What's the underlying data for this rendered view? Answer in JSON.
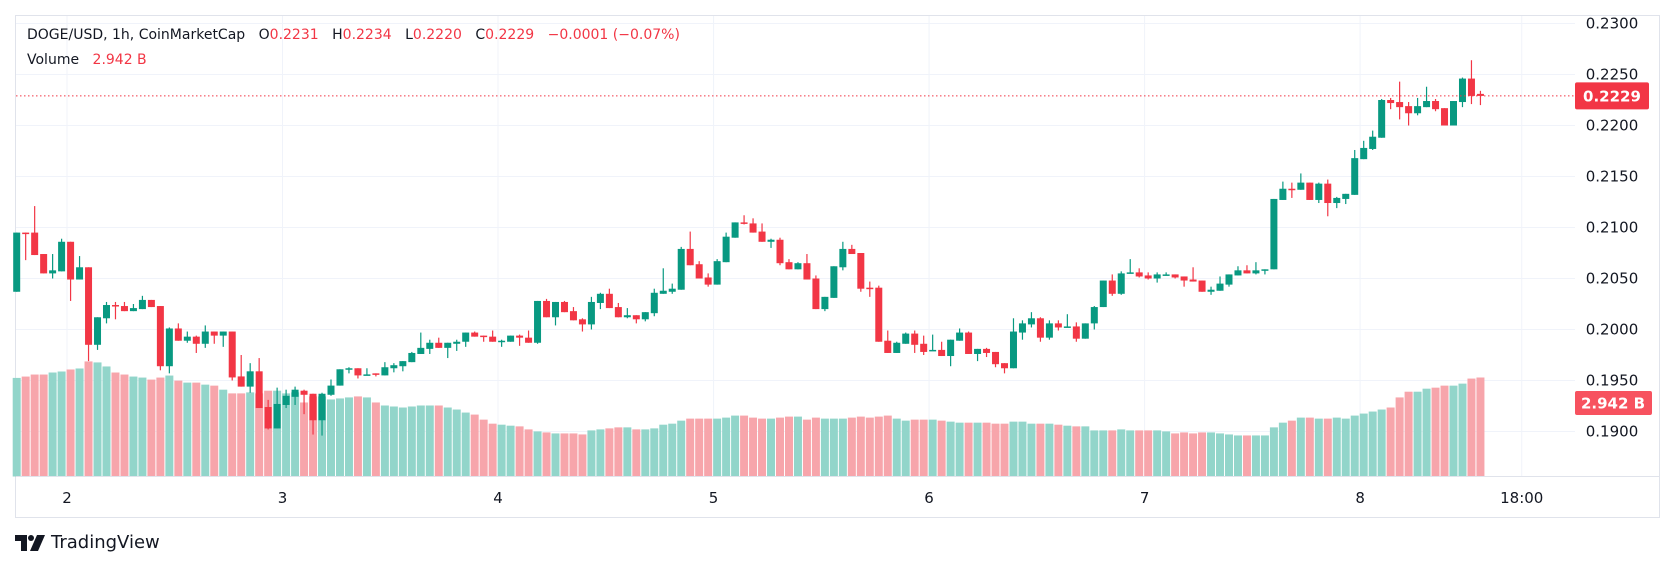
{
  "legend": {
    "symbol": "DOGE/USD, 1h, CoinMarketCap",
    "o_label": "O",
    "o_value": "0.2231",
    "h_label": "H",
    "h_value": "0.2234",
    "l_label": "L",
    "l_value": "0.2220",
    "c_label": "C",
    "c_value": "0.2229",
    "change": "−0.0001 (−0.07%)",
    "volume_label": "Volume",
    "volume_value": "2.942 B"
  },
  "branding": {
    "name": "TradingView"
  },
  "colors": {
    "up": "#089981",
    "down": "#f23645",
    "up_vol": "#92d5ca",
    "down_vol": "#f7a5ab",
    "grid": "#f0f3fa",
    "vol_tag": "#f7525f"
  },
  "chart_data": {
    "type": "candlestick",
    "title": "DOGE/USD, 1h, CoinMarketCap",
    "ylim": [
      0.185,
      0.23
    ],
    "y_ticks": [
      "0.2300",
      "0.2250",
      "0.2200",
      "0.2150",
      "0.2100",
      "0.2050",
      "0.2000",
      "0.1950",
      "0.1900"
    ],
    "x_ticks": [
      {
        "label": "2",
        "at": 5.6
      },
      {
        "label": "3",
        "at": 29.6
      },
      {
        "label": "4",
        "at": 53.6
      },
      {
        "label": "5",
        "at": 77.6
      },
      {
        "label": "6",
        "at": 101.6
      },
      {
        "label": "7",
        "at": 125.6
      },
      {
        "label": "8",
        "at": 149.6
      },
      {
        "label": "18:00",
        "at": 167.6
      }
    ],
    "last_price": {
      "value": 0.2229,
      "label": "0.2229"
    },
    "last_volume": {
      "value": 2.942,
      "label": "2.942 B"
    },
    "volume_unit": "B",
    "candle_fields": [
      "open",
      "high",
      "low",
      "close",
      "volume"
    ],
    "candles": [
      [
        0.2037,
        0.2095,
        0.2037,
        0.2095,
        2.93
      ],
      [
        0.2095,
        0.2095,
        0.2068,
        0.2094,
        2.97
      ],
      [
        0.2095,
        0.2121,
        0.2073,
        0.2073,
        3.03
      ],
      [
        0.2074,
        0.2074,
        0.2055,
        0.2055,
        3.03
      ],
      [
        0.2055,
        0.2074,
        0.205,
        0.2058,
        3.09
      ],
      [
        0.2057,
        0.2089,
        0.2057,
        0.2086,
        3.12
      ],
      [
        0.2086,
        0.2086,
        0.2028,
        0.2049,
        3.18
      ],
      [
        0.2049,
        0.2072,
        0.2049,
        0.2061,
        3.21
      ],
      [
        0.2061,
        0.2061,
        0.1969,
        0.1985,
        3.42
      ],
      [
        0.1985,
        0.2012,
        0.198,
        0.2012,
        3.39
      ],
      [
        0.2011,
        0.2027,
        0.2006,
        0.2024,
        3.27
      ],
      [
        0.2024,
        0.2027,
        0.201,
        0.2023,
        3.09
      ],
      [
        0.2023,
        0.2027,
        0.2018,
        0.2018,
        3.03
      ],
      [
        0.2018,
        0.2025,
        0.2018,
        0.2021,
        2.97
      ],
      [
        0.202,
        0.2033,
        0.202,
        0.2029,
        2.94
      ],
      [
        0.2029,
        0.2029,
        0.2022,
        0.2022,
        2.88
      ],
      [
        0.2023,
        0.2023,
        0.196,
        0.1964,
        2.94
      ],
      [
        0.1964,
        0.2002,
        0.1957,
        0.2001,
        3.0
      ],
      [
        0.2001,
        0.2006,
        0.1989,
        0.1989,
        2.85
      ],
      [
        0.1989,
        0.1998,
        0.1987,
        0.1993,
        2.79
      ],
      [
        0.1993,
        0.1994,
        0.1977,
        0.1986,
        2.79
      ],
      [
        0.1986,
        0.2004,
        0.1982,
        0.1998,
        2.73
      ],
      [
        0.1998,
        0.1998,
        0.1986,
        0.1994,
        2.7
      ],
      [
        0.1994,
        0.1998,
        0.1983,
        0.1998,
        2.58
      ],
      [
        0.1998,
        0.1998,
        0.195,
        0.1953,
        2.47
      ],
      [
        0.1954,
        0.1975,
        0.1944,
        0.1944,
        2.47
      ],
      [
        0.1944,
        0.1967,
        0.1938,
        0.1959,
        2.5
      ],
      [
        0.1959,
        0.1972,
        0.1923,
        0.1923,
        2.47
      ],
      [
        0.1924,
        0.1931,
        0.1902,
        0.1903,
        2.55
      ],
      [
        0.1903,
        0.1943,
        0.1903,
        0.1927,
        2.55
      ],
      [
        0.1926,
        0.1941,
        0.1923,
        0.1935,
        2.47
      ],
      [
        0.1934,
        0.1944,
        0.1926,
        0.1941,
        2.5
      ],
      [
        0.194,
        0.1941,
        0.1917,
        0.1936,
        2.2
      ],
      [
        0.1937,
        0.1937,
        0.1897,
        0.1911,
        2.38
      ],
      [
        0.1911,
        0.1938,
        0.1896,
        0.1937,
        2.38
      ],
      [
        0.1936,
        0.1951,
        0.1935,
        0.1945,
        2.29
      ],
      [
        0.1945,
        0.1961,
        0.1945,
        0.1961,
        2.32
      ],
      [
        0.1962,
        0.1963,
        0.1957,
        0.1962,
        2.35
      ],
      [
        0.1962,
        0.1962,
        0.1952,
        0.1955,
        2.38
      ],
      [
        0.1955,
        0.1962,
        0.1955,
        0.1956,
        2.35
      ],
      [
        0.1957,
        0.1957,
        0.1954,
        0.1956,
        2.2
      ],
      [
        0.1955,
        0.1968,
        0.1955,
        0.1963,
        2.11
      ],
      [
        0.1962,
        0.1967,
        0.1958,
        0.1965,
        2.08
      ],
      [
        0.1964,
        0.1969,
        0.1959,
        0.1969,
        2.05
      ],
      [
        0.1968,
        0.1978,
        0.1968,
        0.1977,
        2.08
      ],
      [
        0.1976,
        0.1997,
        0.1976,
        0.1982,
        2.11
      ],
      [
        0.1981,
        0.199,
        0.1976,
        0.1987,
        2.11
      ],
      [
        0.1987,
        0.1992,
        0.1982,
        0.1982,
        2.11
      ],
      [
        0.1982,
        0.1987,
        0.1972,
        0.1987,
        2.05
      ],
      [
        0.1986,
        0.199,
        0.1979,
        0.1988,
        1.99
      ],
      [
        0.1988,
        0.1997,
        0.1983,
        0.1997,
        1.9
      ],
      [
        0.1997,
        0.1998,
        0.1993,
        0.1993,
        1.84
      ],
      [
        0.1994,
        0.1994,
        0.1988,
        0.1993,
        1.69
      ],
      [
        0.1993,
        0.1999,
        0.1988,
        0.1988,
        1.57
      ],
      [
        0.1989,
        0.199,
        0.1983,
        0.1989,
        1.54
      ],
      [
        0.1988,
        0.1994,
        0.1988,
        0.1994,
        1.51
      ],
      [
        0.1994,
        0.1995,
        0.1984,
        0.1992,
        1.49
      ],
      [
        0.1992,
        0.1999,
        0.1987,
        0.1987,
        1.4
      ],
      [
        0.1987,
        0.2028,
        0.1986,
        0.2028,
        1.34
      ],
      [
        0.2028,
        0.203,
        0.2012,
        0.2012,
        1.31
      ],
      [
        0.2012,
        0.2027,
        0.2004,
        0.2027,
        1.28
      ],
      [
        0.2027,
        0.2028,
        0.2017,
        0.2017,
        1.28
      ],
      [
        0.2018,
        0.2022,
        0.2009,
        0.2009,
        1.28
      ],
      [
        0.201,
        0.2011,
        0.1998,
        0.2005,
        1.25
      ],
      [
        0.2005,
        0.2032,
        0.2,
        0.2027,
        1.37
      ],
      [
        0.2026,
        0.2036,
        0.202,
        0.2035,
        1.4
      ],
      [
        0.2035,
        0.204,
        0.2021,
        0.2021,
        1.43
      ],
      [
        0.2022,
        0.2026,
        0.2012,
        0.2012,
        1.46
      ],
      [
        0.2012,
        0.2021,
        0.2011,
        0.2014,
        1.46
      ],
      [
        0.2014,
        0.2014,
        0.2006,
        0.201,
        1.4
      ],
      [
        0.201,
        0.2017,
        0.2008,
        0.2017,
        1.4
      ],
      [
        0.2016,
        0.204,
        0.2013,
        0.2036,
        1.43
      ],
      [
        0.2035,
        0.206,
        0.2035,
        0.2038,
        1.54
      ],
      [
        0.2037,
        0.2045,
        0.2035,
        0.204,
        1.57
      ],
      [
        0.2039,
        0.2081,
        0.2039,
        0.2079,
        1.66
      ],
      [
        0.2079,
        0.2096,
        0.2063,
        0.2063,
        1.72
      ],
      [
        0.2064,
        0.2067,
        0.205,
        0.205,
        1.72
      ],
      [
        0.2051,
        0.2055,
        0.2042,
        0.2044,
        1.72
      ],
      [
        0.2044,
        0.2069,
        0.2044,
        0.2067,
        1.72
      ],
      [
        0.2066,
        0.2095,
        0.2066,
        0.2091,
        1.75
      ],
      [
        0.209,
        0.2105,
        0.209,
        0.2105,
        1.81
      ],
      [
        0.2105,
        0.2112,
        0.2103,
        0.2104,
        1.81
      ],
      [
        0.2104,
        0.2109,
        0.2095,
        0.2095,
        1.75
      ],
      [
        0.2096,
        0.2104,
        0.2086,
        0.2086,
        1.72
      ],
      [
        0.2086,
        0.2089,
        0.208,
        0.2088,
        1.72
      ],
      [
        0.2088,
        0.209,
        0.2063,
        0.2065,
        1.75
      ],
      [
        0.2066,
        0.2069,
        0.2059,
        0.2059,
        1.78
      ],
      [
        0.2059,
        0.2066,
        0.2059,
        0.2065,
        1.78
      ],
      [
        0.2065,
        0.2074,
        0.2049,
        0.2049,
        1.69
      ],
      [
        0.205,
        0.2053,
        0.202,
        0.202,
        1.75
      ],
      [
        0.202,
        0.2032,
        0.2018,
        0.2032,
        1.72
      ],
      [
        0.2031,
        0.2062,
        0.2031,
        0.2062,
        1.72
      ],
      [
        0.2061,
        0.2086,
        0.2058,
        0.2079,
        1.72
      ],
      [
        0.2079,
        0.2083,
        0.2074,
        0.2074,
        1.75
      ],
      [
        0.2075,
        0.2075,
        0.2037,
        0.204,
        1.78
      ],
      [
        0.2041,
        0.2047,
        0.2032,
        0.204,
        1.75
      ],
      [
        0.2041,
        0.2043,
        0.1988,
        0.1988,
        1.78
      ],
      [
        0.1989,
        0.1999,
        0.1977,
        0.1977,
        1.81
      ],
      [
        0.1977,
        0.1988,
        0.1977,
        0.1987,
        1.72
      ],
      [
        0.1986,
        0.1997,
        0.1986,
        0.1996,
        1.66
      ],
      [
        0.1996,
        0.1999,
        0.1977,
        0.1985,
        1.69
      ],
      [
        0.1986,
        0.1994,
        0.1975,
        0.1978,
        1.69
      ],
      [
        0.1979,
        0.1995,
        0.1979,
        0.198,
        1.69
      ],
      [
        0.198,
        0.1988,
        0.1974,
        0.1974,
        1.66
      ],
      [
        0.1974,
        0.199,
        0.1964,
        0.199,
        1.63
      ],
      [
        0.1989,
        0.2001,
        0.1989,
        0.1997,
        1.6
      ],
      [
        0.1997,
        0.1998,
        0.1976,
        0.1976,
        1.6
      ],
      [
        0.1976,
        0.1981,
        0.1969,
        0.1981,
        1.6
      ],
      [
        0.1981,
        0.1982,
        0.1973,
        0.1977,
        1.6
      ],
      [
        0.1978,
        0.1978,
        0.1963,
        0.1966,
        1.57
      ],
      [
        0.1967,
        0.1967,
        0.1957,
        0.1962,
        1.57
      ],
      [
        0.1962,
        0.2011,
        0.1962,
        0.1998,
        1.63
      ],
      [
        0.1997,
        0.2009,
        0.199,
        0.2006,
        1.63
      ],
      [
        0.2005,
        0.2017,
        0.2002,
        0.2011,
        1.57
      ],
      [
        0.2011,
        0.2012,
        0.1988,
        0.1992,
        1.57
      ],
      [
        0.1992,
        0.2009,
        0.199,
        0.2006,
        1.57
      ],
      [
        0.2006,
        0.2009,
        0.1999,
        0.2002,
        1.54
      ],
      [
        0.2002,
        0.2015,
        0.2002,
        0.2003,
        1.51
      ],
      [
        0.2003,
        0.2007,
        0.1988,
        0.1991,
        1.49
      ],
      [
        0.1991,
        0.2006,
        0.1991,
        0.2006,
        1.49
      ],
      [
        0.2006,
        0.2023,
        0.2,
        0.2022,
        1.37
      ],
      [
        0.2022,
        0.2048,
        0.2022,
        0.2048,
        1.37
      ],
      [
        0.2048,
        0.2054,
        0.2033,
        0.2035,
        1.37
      ],
      [
        0.2035,
        0.2057,
        0.2034,
        0.2055,
        1.4
      ],
      [
        0.2055,
        0.2069,
        0.2055,
        0.2056,
        1.37
      ],
      [
        0.2056,
        0.206,
        0.2051,
        0.2052,
        1.37
      ],
      [
        0.2053,
        0.2056,
        0.2049,
        0.205,
        1.37
      ],
      [
        0.205,
        0.2056,
        0.2046,
        0.2054,
        1.37
      ],
      [
        0.2053,
        0.2056,
        0.2053,
        0.2054,
        1.34
      ],
      [
        0.2054,
        0.2054,
        0.205,
        0.2051,
        1.28
      ],
      [
        0.2052,
        0.2052,
        0.2042,
        0.2048,
        1.31
      ],
      [
        0.2049,
        0.2061,
        0.2047,
        0.2047,
        1.28
      ],
      [
        0.2048,
        0.2048,
        0.2037,
        0.2037,
        1.31
      ],
      [
        0.2037,
        0.2042,
        0.2034,
        0.2039,
        1.31
      ],
      [
        0.2038,
        0.2052,
        0.2038,
        0.2045,
        1.28
      ],
      [
        0.2044,
        0.2054,
        0.2042,
        0.2054,
        1.25
      ],
      [
        0.2053,
        0.2062,
        0.2053,
        0.2058,
        1.22
      ],
      [
        0.2058,
        0.2063,
        0.2055,
        0.2055,
        1.22
      ],
      [
        0.2055,
        0.2066,
        0.2054,
        0.2058,
        1.22
      ],
      [
        0.2058,
        0.2059,
        0.2054,
        0.2059,
        1.22
      ],
      [
        0.2059,
        0.2128,
        0.2059,
        0.2128,
        1.46
      ],
      [
        0.2127,
        0.2145,
        0.2127,
        0.2138,
        1.6
      ],
      [
        0.2138,
        0.2144,
        0.2129,
        0.2137,
        1.66
      ],
      [
        0.2137,
        0.2153,
        0.2137,
        0.2144,
        1.75
      ],
      [
        0.2144,
        0.2144,
        0.2127,
        0.2127,
        1.75
      ],
      [
        0.2127,
        0.2144,
        0.2124,
        0.2143,
        1.72
      ],
      [
        0.2143,
        0.2147,
        0.2111,
        0.2124,
        1.72
      ],
      [
        0.2124,
        0.213,
        0.2119,
        0.2129,
        1.75
      ],
      [
        0.2128,
        0.2133,
        0.2123,
        0.2133,
        1.72
      ],
      [
        0.2132,
        0.2176,
        0.2132,
        0.2168,
        1.81
      ],
      [
        0.2167,
        0.2185,
        0.2167,
        0.2178,
        1.87
      ],
      [
        0.2177,
        0.2195,
        0.2176,
        0.2189,
        1.93
      ],
      [
        0.2188,
        0.2226,
        0.2188,
        0.2225,
        1.99
      ],
      [
        0.2225,
        0.2227,
        0.2216,
        0.2222,
        2.05
      ],
      [
        0.2223,
        0.2243,
        0.2206,
        0.2218,
        2.35
      ],
      [
        0.2219,
        0.2223,
        0.22,
        0.2212,
        2.52
      ],
      [
        0.2212,
        0.2227,
        0.221,
        0.2219,
        2.52
      ],
      [
        0.2218,
        0.2238,
        0.2218,
        0.2224,
        2.61
      ],
      [
        0.2224,
        0.2226,
        0.2214,
        0.2216,
        2.64
      ],
      [
        0.2217,
        0.2217,
        0.22,
        0.22,
        2.7
      ],
      [
        0.22,
        0.2224,
        0.22,
        0.2224,
        2.7
      ],
      [
        0.2223,
        0.2247,
        0.2218,
        0.2246,
        2.76
      ],
      [
        0.2246,
        0.2264,
        0.2221,
        0.2229,
        2.91
      ],
      [
        0.2231,
        0.2234,
        0.222,
        0.2229,
        2.942
      ]
    ]
  }
}
